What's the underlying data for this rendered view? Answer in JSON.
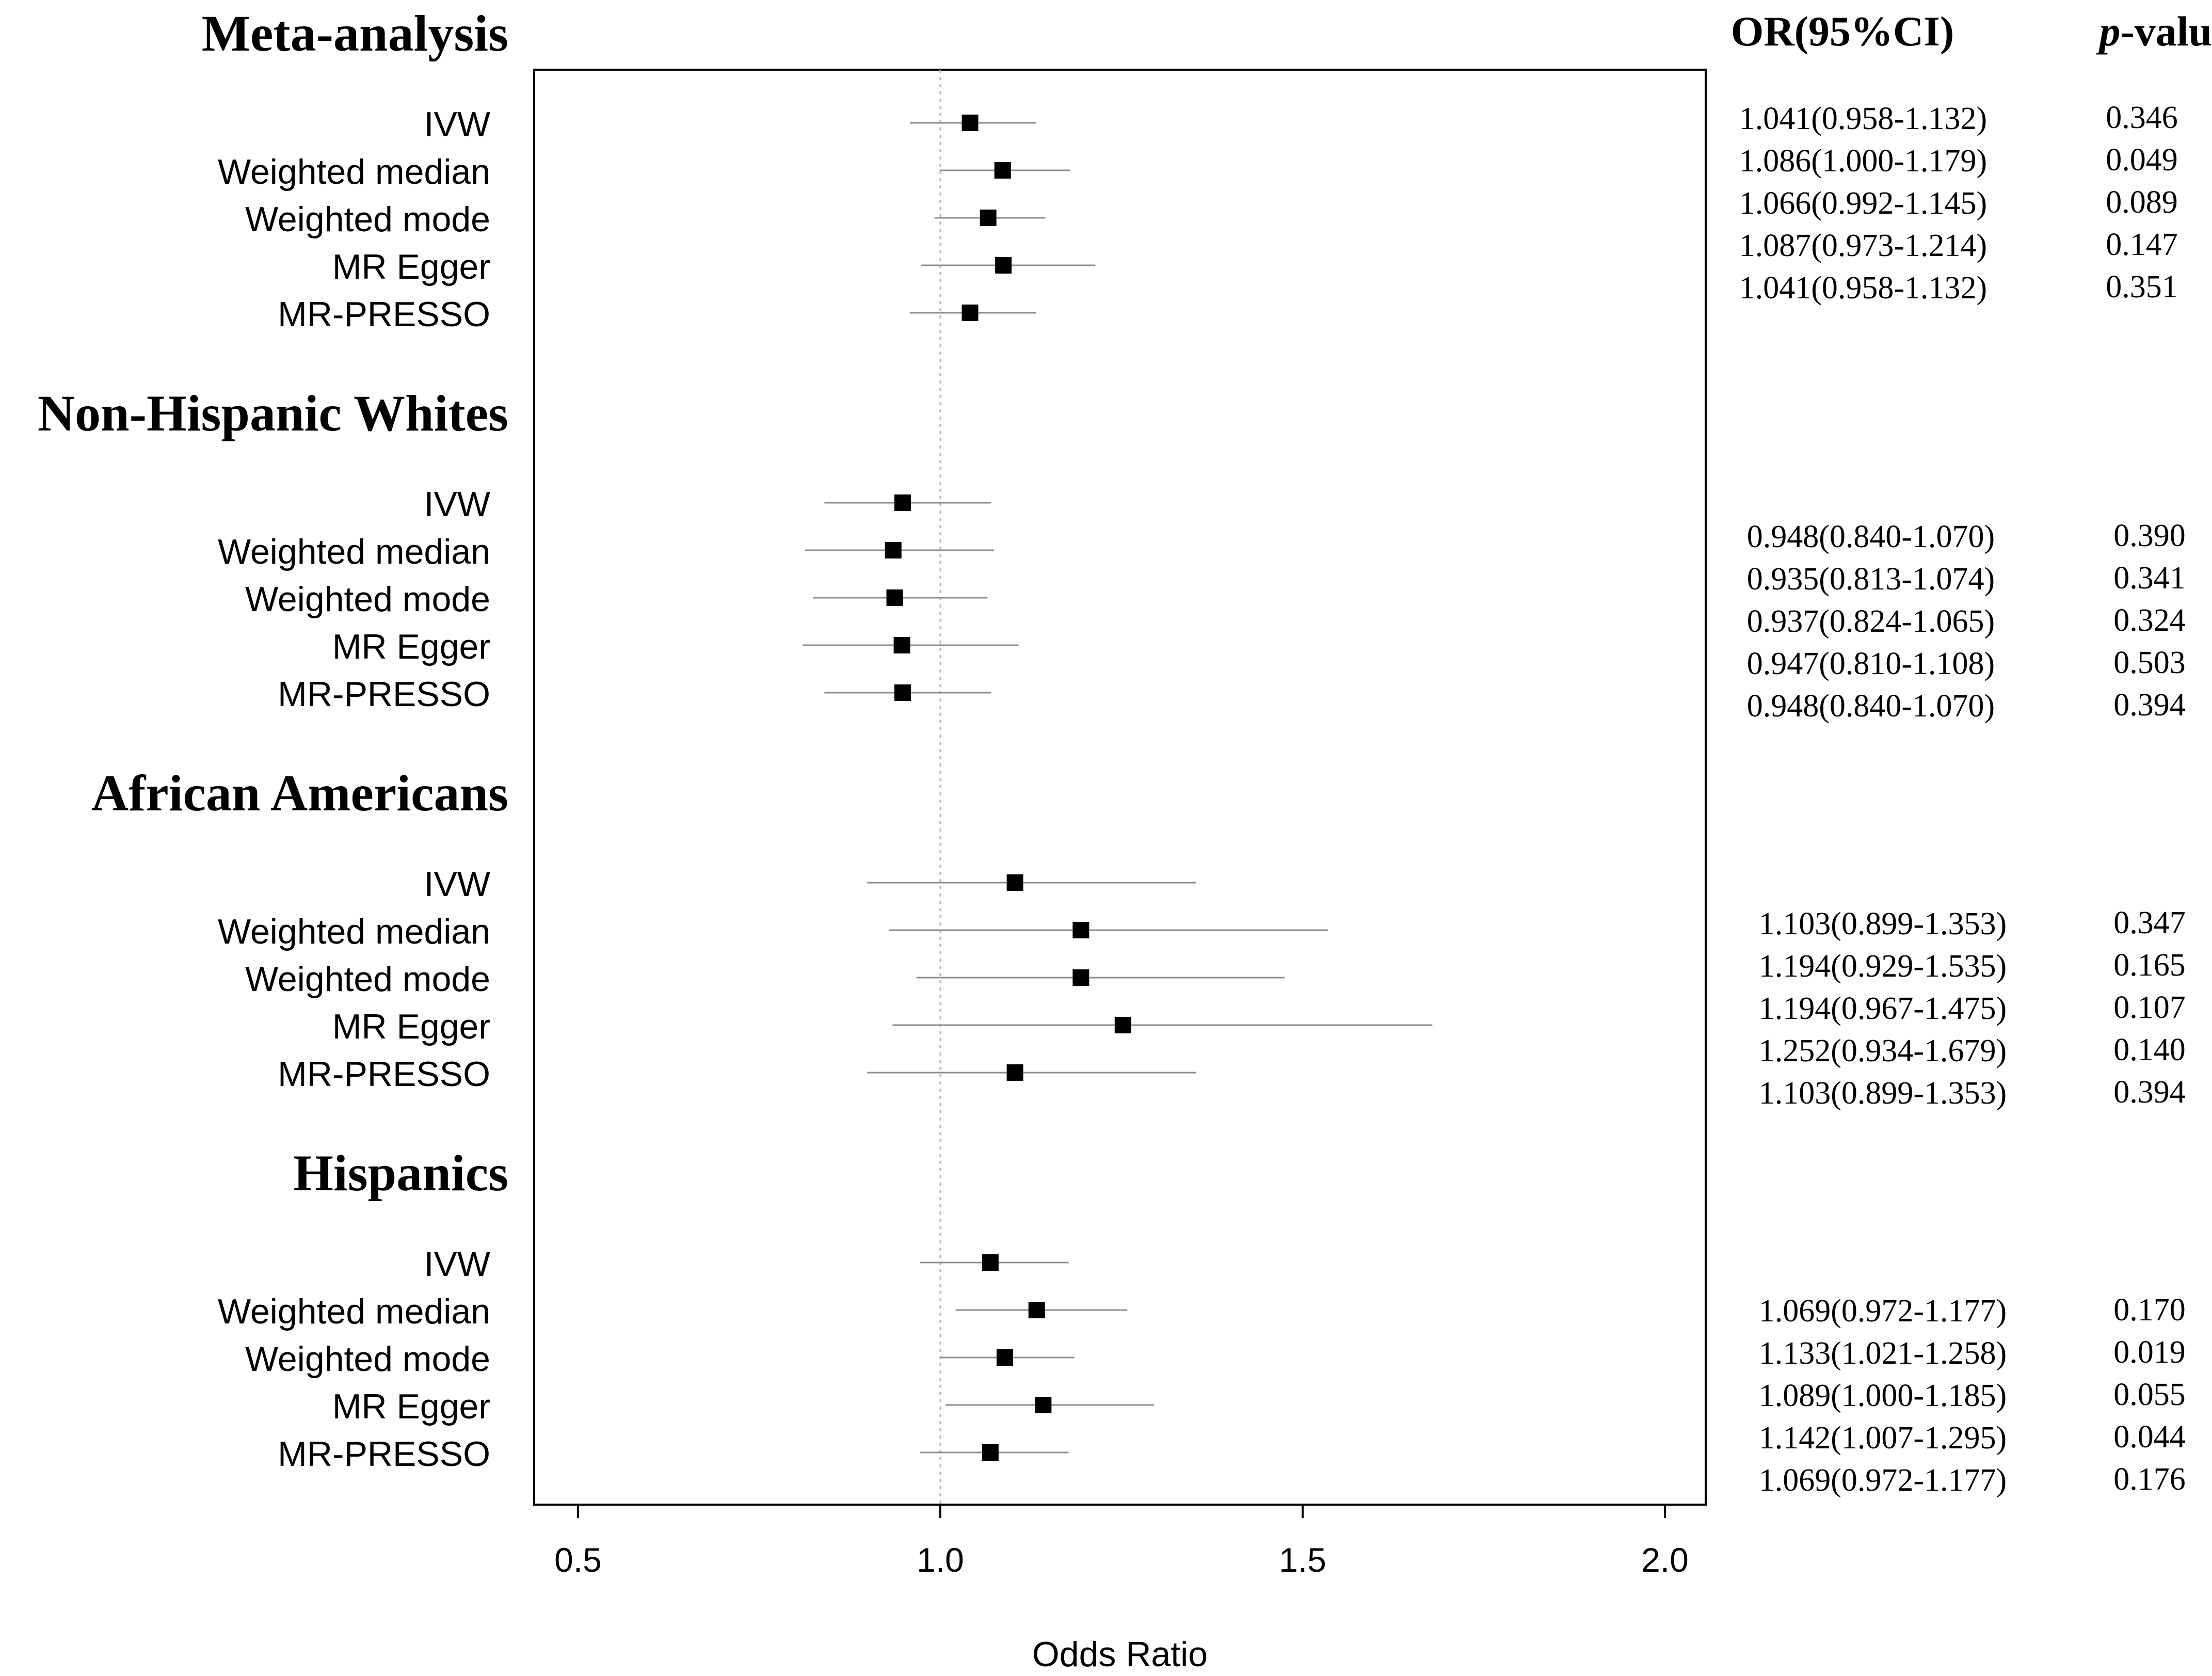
{
  "chart_data": {
    "type": "forest",
    "xlabel": "Odds Ratio",
    "xlim": [
      0.45,
      2.06
    ],
    "xticks": [
      0.5,
      1.0,
      1.5,
      2.0
    ],
    "xtick_labels": [
      "0.5",
      "1.0",
      "1.5",
      "2.0"
    ],
    "reference_line": 1.0,
    "columns": {
      "or_header": "OR(95%CI)",
      "p_header_italic": "p",
      "p_header_rest": "-value"
    },
    "groups": [
      {
        "title": "Meta-analysis",
        "rows": [
          {
            "method": "IVW",
            "or": 1.041,
            "lo": 0.958,
            "hi": 1.132,
            "or_text": "1.041(0.958-1.132)",
            "p": "0.346"
          },
          {
            "method": "Weighted median",
            "or": 1.086,
            "lo": 1.0,
            "hi": 1.179,
            "or_text": "1.086(1.000-1.179)",
            "p": "0.049"
          },
          {
            "method": "Weighted mode",
            "or": 1.066,
            "lo": 0.992,
            "hi": 1.145,
            "or_text": "1.066(0.992-1.145)",
            "p": "0.089"
          },
          {
            "method": "MR Egger",
            "or": 1.087,
            "lo": 0.973,
            "hi": 1.214,
            "or_text": "1.087(0.973-1.214)",
            "p": "0.147"
          },
          {
            "method": "MR-PRESSO",
            "or": 1.041,
            "lo": 0.958,
            "hi": 1.132,
            "or_text": "1.041(0.958-1.132)",
            "p": "0.351"
          }
        ]
      },
      {
        "title": "Non-Hispanic Whites",
        "rows": [
          {
            "method": "IVW",
            "or": 0.948,
            "lo": 0.84,
            "hi": 1.07,
            "or_text": "0.948(0.840-1.070)",
            "p": "0.390"
          },
          {
            "method": "Weighted median",
            "or": 0.935,
            "lo": 0.813,
            "hi": 1.074,
            "or_text": "0.935(0.813-1.074)",
            "p": "0.341"
          },
          {
            "method": "Weighted mode",
            "or": 0.937,
            "lo": 0.824,
            "hi": 1.065,
            "or_text": "0.937(0.824-1.065)",
            "p": "0.324"
          },
          {
            "method": "MR Egger",
            "or": 0.947,
            "lo": 0.81,
            "hi": 1.108,
            "or_text": "0.947(0.810-1.108)",
            "p": "0.503"
          },
          {
            "method": "MR-PRESSO",
            "or": 0.948,
            "lo": 0.84,
            "hi": 1.07,
            "or_text": "0.948(0.840-1.070)",
            "p": "0.394"
          }
        ]
      },
      {
        "title": "African Americans",
        "rows": [
          {
            "method": "IVW",
            "or": 1.103,
            "lo": 0.899,
            "hi": 1.353,
            "or_text": "1.103(0.899-1.353)",
            "p": "0.347"
          },
          {
            "method": "Weighted median",
            "or": 1.194,
            "lo": 0.929,
            "hi": 1.535,
            "or_text": "1.194(0.929-1.535)",
            "p": "0.165"
          },
          {
            "method": "Weighted mode",
            "or": 1.194,
            "lo": 0.967,
            "hi": 1.475,
            "or_text": "1.194(0.967-1.475)",
            "p": "0.107"
          },
          {
            "method": "MR Egger",
            "or": 1.252,
            "lo": 0.934,
            "hi": 1.679,
            "or_text": "1.252(0.934-1.679)",
            "p": "0.140"
          },
          {
            "method": "MR-PRESSO",
            "or": 1.103,
            "lo": 0.899,
            "hi": 1.353,
            "or_text": "1.103(0.899-1.353)",
            "p": "0.394"
          }
        ]
      },
      {
        "title": "Hispanics",
        "rows": [
          {
            "method": "IVW",
            "or": 1.069,
            "lo": 0.972,
            "hi": 1.177,
            "or_text": "1.069(0.972-1.177)",
            "p": "0.170"
          },
          {
            "method": "Weighted median",
            "or": 1.133,
            "lo": 1.021,
            "hi": 1.258,
            "or_text": "1.133(1.021-1.258)",
            "p": "0.019"
          },
          {
            "method": "Weighted mode",
            "or": 1.089,
            "lo": 1.0,
            "hi": 1.185,
            "or_text": "1.089(1.000-1.185)",
            "p": "0.055"
          },
          {
            "method": "MR Egger",
            "or": 1.142,
            "lo": 1.007,
            "hi": 1.295,
            "or_text": "1.142(1.007-1.295)",
            "p": "0.044"
          },
          {
            "method": "MR-PRESSO",
            "or": 1.069,
            "lo": 0.972,
            "hi": 1.177,
            "or_text": "1.069(0.972-1.177)",
            "p": "0.176"
          }
        ]
      }
    ]
  },
  "colors": {
    "marker": "#000000",
    "ci_line": "#8c8c8c",
    "ref_line": "#b4b4b4",
    "frame": "#000000"
  }
}
